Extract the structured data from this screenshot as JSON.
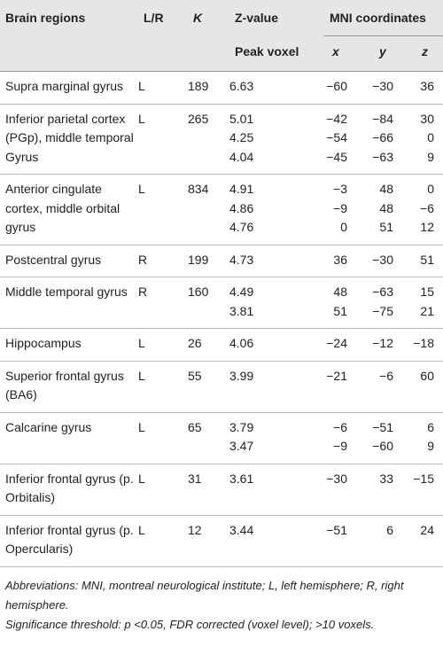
{
  "table": {
    "header": {
      "region": "Brain regions",
      "side": "L/R",
      "k": "K",
      "zvalue": "Z-value",
      "mni": "MNI coordinates",
      "peak": "Peak voxel",
      "x": "x",
      "y": "y",
      "z": "z"
    },
    "groups": [
      {
        "region": "Supra marginal gyrus",
        "side": "L",
        "k": "189",
        "rows": [
          [
            "6.63",
            "−60",
            "−30",
            "36"
          ]
        ]
      },
      {
        "region": "Inferior parietal cortex (PGp), middle temporal Gyrus",
        "side": "L",
        "k": "265",
        "rows": [
          [
            "5.01",
            "−42",
            "−84",
            "30"
          ],
          [
            "4.25",
            "−54",
            "−66",
            "0"
          ],
          [
            "4.04",
            "−45",
            "−63",
            "9"
          ]
        ]
      },
      {
        "region": "Anterior cingulate cortex, middle orbital gyrus",
        "side": "L",
        "k": "834",
        "rows": [
          [
            "4.91",
            "−3",
            "48",
            "0"
          ],
          [
            "4.86",
            "−9",
            "48",
            "−6"
          ],
          [
            "4.76",
            "0",
            "51",
            "12"
          ]
        ]
      },
      {
        "region": "Postcentral gyrus",
        "side": "R",
        "k": "199",
        "rows": [
          [
            "4.73",
            "36",
            "−30",
            "51"
          ]
        ]
      },
      {
        "region": "Middle temporal gyrus",
        "side": "R",
        "k": "160",
        "rows": [
          [
            "4.49",
            "48",
            "−63",
            "15"
          ],
          [
            "3.81",
            "51",
            "−75",
            "21"
          ]
        ]
      },
      {
        "region": "Hippocampus",
        "side": "L",
        "k": "26",
        "rows": [
          [
            "4.06",
            "−24",
            "−12",
            "−18"
          ]
        ]
      },
      {
        "region": "Superior frontal gyrus (BA6)",
        "side": "L",
        "k": "55",
        "rows": [
          [
            "3.99",
            "−21",
            "−6",
            "60"
          ]
        ]
      },
      {
        "region": "Calcarine gyrus",
        "side": "L",
        "k": "65",
        "rows": [
          [
            "3.79",
            "−6",
            "−51",
            "6"
          ],
          [
            "3.47",
            "−9",
            "−60",
            "9"
          ]
        ]
      },
      {
        "region": "Inferior frontal gyrus (p. Orbitalis)",
        "side": "L",
        "k": "31",
        "rows": [
          [
            "3.61",
            "−30",
            "33",
            "−15"
          ]
        ]
      },
      {
        "region": "Inferior frontal gyrus (p. Opercularis)",
        "side": "L",
        "k": "12",
        "rows": [
          [
            "3.44",
            "−51",
            "6",
            "24"
          ]
        ]
      }
    ],
    "notes": [
      "Abbreviations: MNI, montreal neurological institute; L, left hemisphere; R, right hemisphere.",
      "Significance threshold: p <0.05, FDR corrected (voxel level); >10 voxels."
    ]
  }
}
